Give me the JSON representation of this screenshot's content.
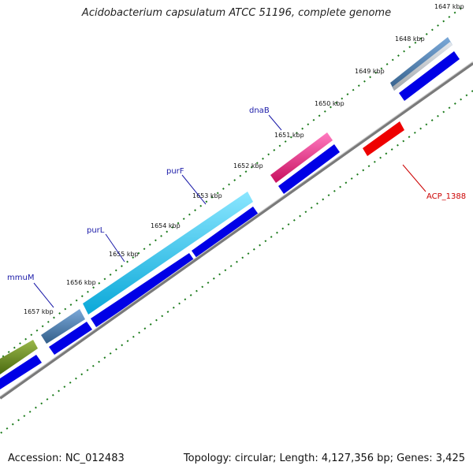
{
  "title": "Acidobacterium capsulatum ATCC 51196, complete genome",
  "footer": {
    "accession": "Accession: NC_012483",
    "summary": "Topology: circular; Length: 4,127,356 bp; Genes: 3,425"
  },
  "scale": {
    "unit": "kbp",
    "ticks": [
      "1647 kbp",
      "1648 kbp",
      "1649 kbp",
      "1650 kbp",
      "1651 kbp",
      "1652 kbp",
      "1653 kbp",
      "1654 kbp",
      "1655 kbp",
      "1656 kbp",
      "1657 kbp"
    ]
  },
  "gene_labels": {
    "dnaB": "dnaB",
    "purF": "purF",
    "purL": "purL",
    "mmuM": "mmuM",
    "acp1388": "ACP_1388"
  },
  "colors": {
    "backbone": "#8a8a8a",
    "ticks": "#1a7a1a",
    "cds": "#0000e6",
    "dnaB": "#ee2288",
    "purF_purL": "#22c8ea",
    "mmuM": "#4a7fa8",
    "gene_1648": "#5a8abf",
    "gene_left": "#6b8e23",
    "acp1388": "#ee0000",
    "label_forward": "#1a1aa8",
    "label_reverse": "#cc0000"
  }
}
